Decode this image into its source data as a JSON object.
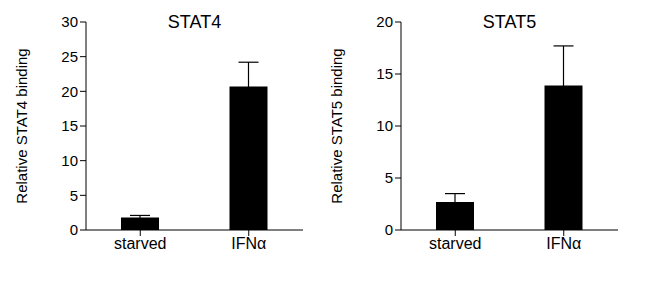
{
  "chart_data": [
    {
      "type": "bar",
      "title": "STAT4",
      "y_label": "Relative STAT4 binding",
      "categories": [
        "starved",
        "IFNα"
      ],
      "values": [
        1.8,
        20.7
      ],
      "errors": [
        0.3,
        3.5
      ],
      "color": "#000000",
      "ylim": [
        0,
        30
      ],
      "yticks": [
        0,
        5,
        10,
        15,
        20,
        25,
        30
      ],
      "grid": false
    },
    {
      "type": "bar",
      "title": "STAT5",
      "y_label": "Relative STAT5 binding",
      "categories": [
        "starved",
        "IFNα"
      ],
      "values": [
        2.7,
        13.9
      ],
      "errors": [
        0.8,
        3.8
      ],
      "color": "#000000",
      "ylim": [
        0,
        20
      ],
      "yticks": [
        0,
        5,
        10,
        15,
        20
      ],
      "grid": false
    }
  ]
}
